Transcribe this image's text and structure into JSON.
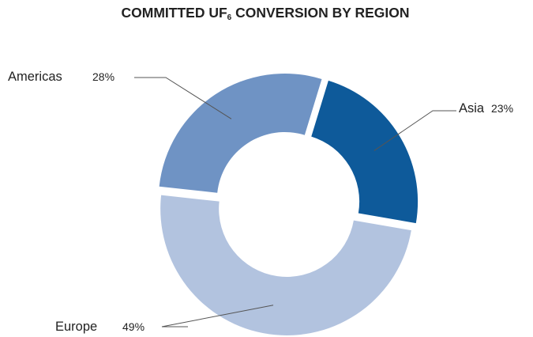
{
  "chart_data": {
    "type": "pie",
    "title_main": "COMMITTED UF",
    "title_subscript": "6",
    "title_rest": " CONVERSION BY REGION",
    "slices": [
      {
        "label": "Asia",
        "pct_text": "23%",
        "value": 23,
        "color": "#0e5a9a"
      },
      {
        "label": "Europe",
        "pct_text": "49%",
        "value": 49,
        "color": "#b2c3df"
      },
      {
        "label": "Americas",
        "pct_text": "28%",
        "value": 28,
        "color": "#6f93c4"
      }
    ],
    "donut": true,
    "exploded": true,
    "start_angle_deg": 17
  }
}
